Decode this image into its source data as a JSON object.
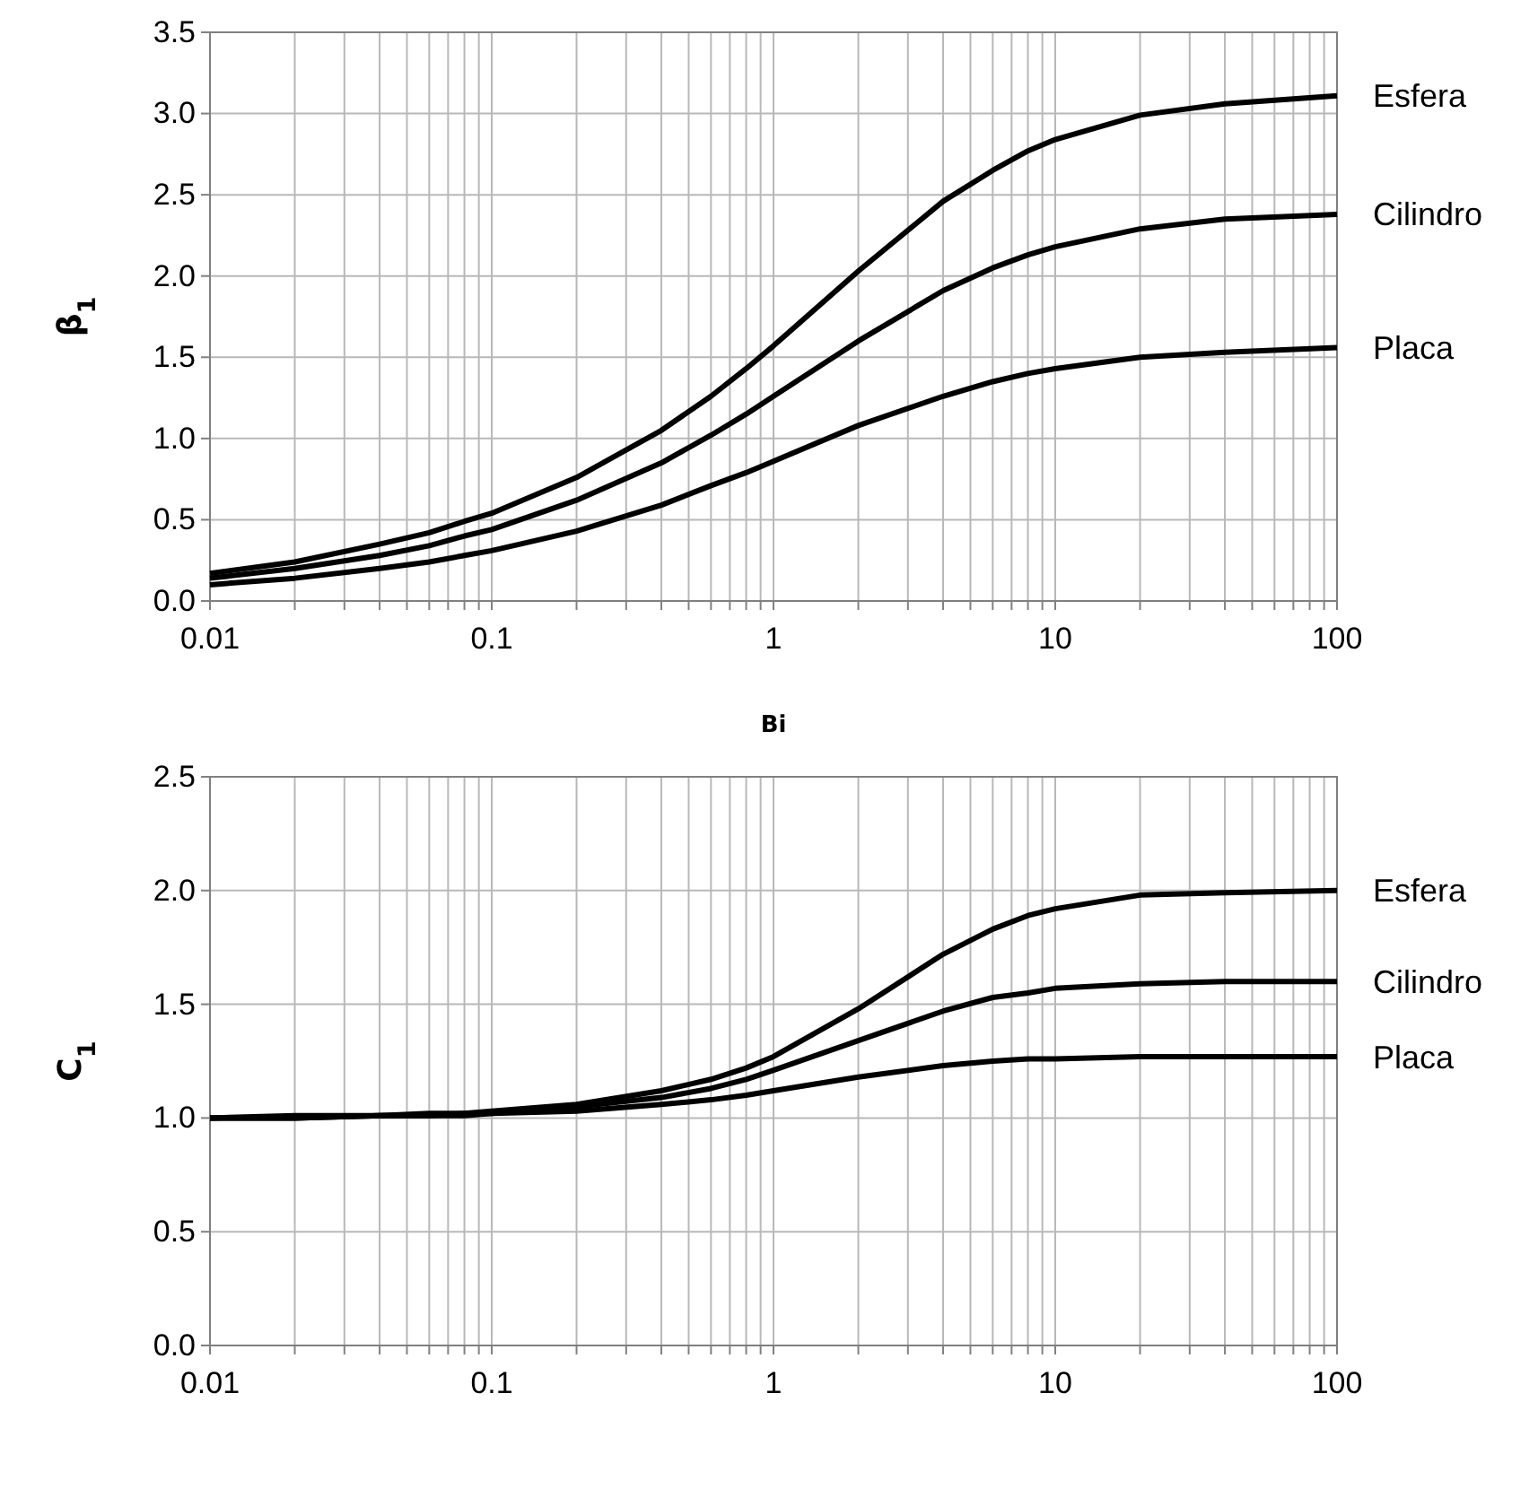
{
  "chart_data": [
    {
      "type": "line",
      "xlabel": "Bi",
      "ylabel": "β$_{1}$",
      "log": "x",
      "grid": true,
      "marker": "none",
      "line_style": "solid",
      "x": [
        0.01,
        0.02,
        0.04,
        0.06,
        0.08,
        0.1,
        0.2,
        0.4,
        0.6,
        0.8,
        1,
        2,
        4,
        6,
        8,
        10,
        20,
        40,
        100
      ],
      "xlim": [
        0.01,
        100
      ],
      "xticks": [
        0.01,
        {
          "value": 0.02,
          "label": null
        },
        {
          "value": 0.03,
          "label": null
        },
        {
          "value": 0.04,
          "label": null
        },
        {
          "value": 0.05,
          "label": null
        },
        {
          "value": 0.06,
          "label": null
        },
        {
          "value": 0.07,
          "label": null
        },
        {
          "value": 0.08,
          "label": null
        },
        {
          "value": 0.09,
          "label": null
        },
        0.1,
        {
          "value": 0.2,
          "label": null
        },
        {
          "value": 0.3,
          "label": null
        },
        {
          "value": 0.4,
          "label": null
        },
        {
          "value": 0.5,
          "label": null
        },
        {
          "value": 0.6,
          "label": null
        },
        {
          "value": 0.7,
          "label": null
        },
        {
          "value": 0.8,
          "label": null
        },
        {
          "value": 0.9,
          "label": null
        },
        1,
        {
          "value": 2,
          "label": null
        },
        {
          "value": 3,
          "label": null
        },
        {
          "value": 4,
          "label": null
        },
        {
          "value": 5,
          "label": null
        },
        {
          "value": 6,
          "label": null
        },
        {
          "value": 7,
          "label": null
        },
        {
          "value": 8,
          "label": null
        },
        {
          "value": 9,
          "label": null
        },
        10,
        {
          "value": 20,
          "label": null
        },
        {
          "value": 30,
          "label": null
        },
        {
          "value": 40,
          "label": null
        },
        {
          "value": 50,
          "label": null
        },
        {
          "value": 60,
          "label": null
        },
        {
          "value": 70,
          "label": null
        },
        {
          "value": 80,
          "label": null
        },
        {
          "value": 90,
          "label": null
        },
        100
      ],
      "ylim": [
        0,
        3.5
      ],
      "yticks": [
        {
          "value": 0,
          "label": "0.0"
        },
        {
          "value": 0.5,
          "label": "0.5"
        },
        {
          "value": 1,
          "label": "1.0"
        },
        {
          "value": 1.5,
          "label": "1.5"
        },
        {
          "value": 2,
          "label": "2.0"
        },
        {
          "value": 2.5,
          "label": "2.5"
        },
        {
          "value": 3,
          "label": "3.0"
        },
        {
          "value": 3.5,
          "label": "3.5"
        }
      ],
      "series": [
        {
          "name": "Esfera",
          "color": "#000000",
          "values": [
            0.17,
            0.24,
            0.35,
            0.42,
            0.49,
            0.54,
            0.76,
            1.05,
            1.26,
            1.43,
            1.57,
            2.03,
            2.46,
            2.65,
            2.77,
            2.84,
            2.99,
            3.06,
            3.11
          ]
        },
        {
          "name": "Cilindro",
          "color": "#000000",
          "values": [
            0.14,
            0.2,
            0.28,
            0.34,
            0.4,
            0.44,
            0.62,
            0.85,
            1.02,
            1.15,
            1.26,
            1.6,
            1.91,
            2.05,
            2.13,
            2.18,
            2.29,
            2.35,
            2.38
          ]
        },
        {
          "name": "Placa",
          "color": "#000000",
          "values": [
            0.1,
            0.14,
            0.2,
            0.24,
            0.28,
            0.31,
            0.43,
            0.59,
            0.71,
            0.79,
            0.86,
            1.08,
            1.26,
            1.35,
            1.4,
            1.43,
            1.5,
            1.53,
            1.56
          ]
        }
      ]
    },
    {
      "type": "line",
      "ylabel": "C$_{1}$",
      "log": "x",
      "grid": true,
      "marker": "none",
      "line_style": "solid",
      "x": [
        0.01,
        0.02,
        0.04,
        0.06,
        0.08,
        0.1,
        0.2,
        0.4,
        0.6,
        0.8,
        1,
        2,
        4,
        6,
        8,
        10,
        20,
        40,
        100
      ],
      "xlim": [
        0.01,
        100
      ],
      "xticks": [
        0.01,
        {
          "value": 0.02,
          "label": null
        },
        {
          "value": 0.03,
          "label": null
        },
        {
          "value": 0.04,
          "label": null
        },
        {
          "value": 0.05,
          "label": null
        },
        {
          "value": 0.06,
          "label": null
        },
        {
          "value": 0.07,
          "label": null
        },
        {
          "value": 0.08,
          "label": null
        },
        {
          "value": 0.09,
          "label": null
        },
        0.1,
        {
          "value": 0.2,
          "label": null
        },
        {
          "value": 0.3,
          "label": null
        },
        {
          "value": 0.4,
          "label": null
        },
        {
          "value": 0.5,
          "label": null
        },
        {
          "value": 0.6,
          "label": null
        },
        {
          "value": 0.7,
          "label": null
        },
        {
          "value": 0.8,
          "label": null
        },
        {
          "value": 0.9,
          "label": null
        },
        1,
        {
          "value": 2,
          "label": null
        },
        {
          "value": 3,
          "label": null
        },
        {
          "value": 4,
          "label": null
        },
        {
          "value": 5,
          "label": null
        },
        {
          "value": 6,
          "label": null
        },
        {
          "value": 7,
          "label": null
        },
        {
          "value": 8,
          "label": null
        },
        {
          "value": 9,
          "label": null
        },
        10,
        {
          "value": 20,
          "label": null
        },
        {
          "value": 30,
          "label": null
        },
        {
          "value": 40,
          "label": null
        },
        {
          "value": 50,
          "label": null
        },
        {
          "value": 60,
          "label": null
        },
        {
          "value": 70,
          "label": null
        },
        {
          "value": 80,
          "label": null
        },
        {
          "value": 90,
          "label": null
        },
        100
      ],
      "ylim": [
        0,
        2.5
      ],
      "yticks": [
        {
          "value": 0,
          "label": "0.0"
        },
        {
          "value": 0.5,
          "label": "0.5"
        },
        {
          "value": 1,
          "label": "1.0"
        },
        {
          "value": 1.5,
          "label": "1.5"
        },
        {
          "value": 2,
          "label": "2.0"
        },
        {
          "value": 2.5,
          "label": "2.5"
        }
      ],
      "series": [
        {
          "name": "Esfera",
          "color": "#000000",
          "values": [
            1,
            1.01,
            1.01,
            1.02,
            1.02,
            1.03,
            1.06,
            1.12,
            1.17,
            1.22,
            1.27,
            1.48,
            1.72,
            1.83,
            1.89,
            1.92,
            1.98,
            1.99,
            2
          ]
        },
        {
          "name": "Cilindro",
          "color": "#000000",
          "values": [
            1,
            1,
            1.01,
            1.01,
            1.02,
            1.02,
            1.05,
            1.09,
            1.13,
            1.17,
            1.21,
            1.34,
            1.47,
            1.53,
            1.55,
            1.57,
            1.59,
            1.6,
            1.6
          ]
        },
        {
          "name": "Placa",
          "color": "#000000",
          "values": [
            1,
            1,
            1.01,
            1.01,
            1.01,
            1.02,
            1.03,
            1.06,
            1.08,
            1.1,
            1.12,
            1.18,
            1.23,
            1.25,
            1.26,
            1.26,
            1.27,
            1.27,
            1.27
          ]
        }
      ]
    }
  ]
}
